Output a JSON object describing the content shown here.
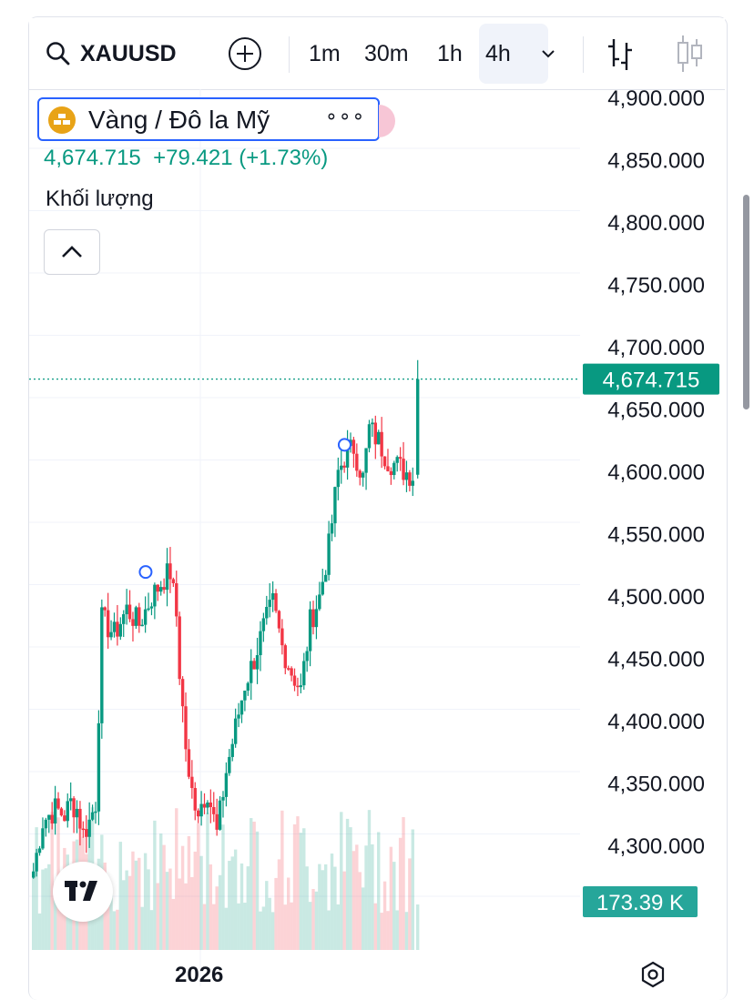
{
  "toolbar": {
    "symbol": "XAUUSD",
    "timeframes": [
      "1m",
      "30m",
      "1h",
      "4h"
    ],
    "selected_timeframe": "4h",
    "icons": [
      "search-icon",
      "add-circle-icon",
      "chevron-down-icon",
      "bar-chart-icon",
      "candlestick-icon"
    ]
  },
  "legend": {
    "title": "Vàng / Đô la Mỹ",
    "more": "∘∘∘",
    "last": "4,674.715",
    "change": "+79.421",
    "change_pct": "(+1.73%)",
    "volume_label": "Khối lượng"
  },
  "colors": {
    "up": "#089981",
    "down": "#f23645",
    "accent": "#2962ff",
    "gold": "#e8a317"
  },
  "bottom": {
    "year": "2026",
    "logo": "tv-logo-icon",
    "settings": "settings-icon"
  },
  "chart_data": {
    "type": "candlestick",
    "symbol": "XAUUSD",
    "timeframe": "4h",
    "y_ticks": [
      "4,900.000",
      "4,850.000",
      "4,800.000",
      "4,750.000",
      "4,700.000",
      "4,650.000",
      "4,600.000",
      "4,550.000",
      "4,500.000",
      "4,450.000",
      "4,400.000",
      "4,350.000",
      "4,300.000"
    ],
    "ylim": [
      4255,
      4920
    ],
    "last_price_label": "4,674.715",
    "last_price": 4674.715,
    "volume_label": "173.39 K",
    "x_label": "2026",
    "grid": true,
    "close_anchors": [
      [
        0,
        4280
      ],
      [
        3,
        4320
      ],
      [
        7,
        4330
      ],
      [
        10,
        4325
      ],
      [
        12,
        4335
      ],
      [
        14,
        4330
      ],
      [
        16,
        4310
      ],
      [
        18,
        4320
      ],
      [
        20,
        4335
      ],
      [
        22,
        4482
      ],
      [
        26,
        4470
      ],
      [
        30,
        4490
      ],
      [
        34,
        4478
      ],
      [
        38,
        4500
      ],
      [
        42,
        4515
      ],
      [
        44,
        4520
      ],
      [
        46,
        4485
      ],
      [
        47,
        4440
      ],
      [
        50,
        4350
      ],
      [
        53,
        4330
      ],
      [
        56,
        4345
      ],
      [
        59,
        4310
      ],
      [
        62,
        4360
      ],
      [
        65,
        4395
      ],
      [
        68,
        4430
      ],
      [
        71,
        4450
      ],
      [
        74,
        4475
      ],
      [
        77,
        4495
      ],
      [
        80,
        4460
      ],
      [
        83,
        4440
      ],
      [
        86,
        4425
      ],
      [
        89,
        4480
      ],
      [
        92,
        4500
      ],
      [
        95,
        4540
      ],
      [
        98,
        4600
      ],
      [
        100,
        4612
      ],
      [
        103,
        4620
      ],
      [
        106,
        4595
      ],
      [
        108,
        4635
      ],
      [
        111,
        4625
      ],
      [
        114,
        4610
      ],
      [
        117,
        4605
      ],
      [
        120,
        4600
      ],
      [
        122,
        4598
      ]
    ],
    "last_candle": {
      "open": 4598,
      "high": 4690,
      "low": 4595,
      "close": 4674.715
    }
  }
}
